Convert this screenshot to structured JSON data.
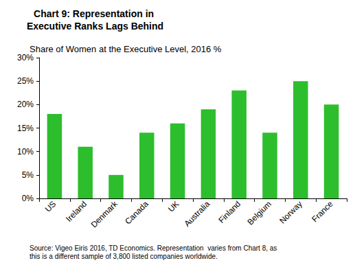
{
  "chart_data": {
    "type": "bar",
    "title": "Chart 9: Representation in Executive Ranks Lags Behind",
    "subtitle": "Share of Women at the Executive Level, 2016 %",
    "source": "Source: Vigeo Eiris 2016, TD Economics. Representation  varies from Chart 8, as this is a different sample of 3,800 listed companies worldwide.",
    "categories": [
      "US",
      "Ireland",
      "Denmark",
      "Canada",
      "UK",
      "Australia",
      "Finland",
      "Belgium",
      "Norway",
      "France"
    ],
    "values": [
      18,
      11,
      5,
      14,
      16,
      19,
      23,
      14,
      25,
      20
    ],
    "color": "#2dbe2d",
    "ylim": [
      0,
      30
    ],
    "yticks": [
      {
        "value": 0,
        "label": "0%"
      },
      {
        "value": 5,
        "label": "5%"
      },
      {
        "value": 10,
        "label": "10%"
      },
      {
        "value": 15,
        "label": "15%"
      },
      {
        "value": 20,
        "label": "20%"
      },
      {
        "value": 25,
        "label": "25%"
      },
      {
        "value": 30,
        "label": "30%"
      }
    ],
    "grid": false
  }
}
